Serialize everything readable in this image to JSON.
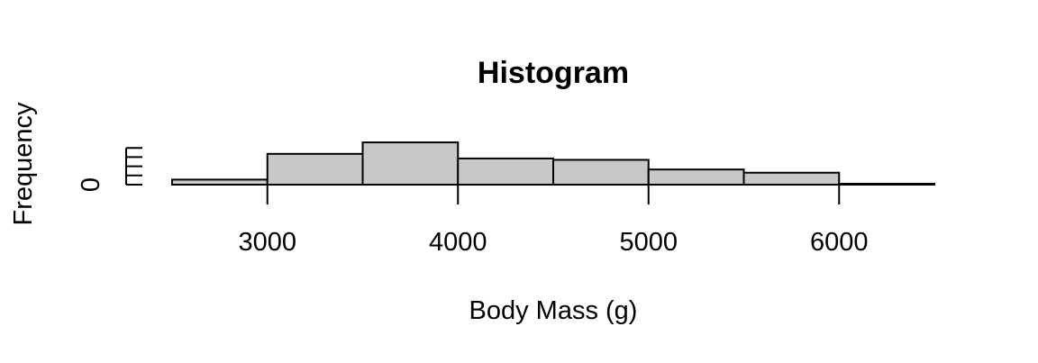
{
  "chart_data": {
    "type": "bar",
    "title": "Histogram",
    "xlabel": "Body Mass (g)",
    "ylabel": "Frequency",
    "bins": [
      {
        "start": 2500,
        "end": 3000,
        "count": 11
      },
      {
        "start": 3000,
        "end": 3500,
        "count": 67
      },
      {
        "start": 3500,
        "end": 4000,
        "count": 92
      },
      {
        "start": 4000,
        "end": 4500,
        "count": 57
      },
      {
        "start": 4500,
        "end": 5000,
        "count": 54
      },
      {
        "start": 5000,
        "end": 5500,
        "count": 33
      },
      {
        "start": 5500,
        "end": 6000,
        "count": 26
      },
      {
        "start": 6000,
        "end": 6500,
        "count": 2
      }
    ],
    "x_ticks": [
      "3000",
      "4000",
      "5000",
      "6000"
    ],
    "y_ticks": [
      "0"
    ],
    "xlim": [
      2500,
      6500
    ],
    "grid": false,
    "bar_color": "#c8c8c8"
  }
}
